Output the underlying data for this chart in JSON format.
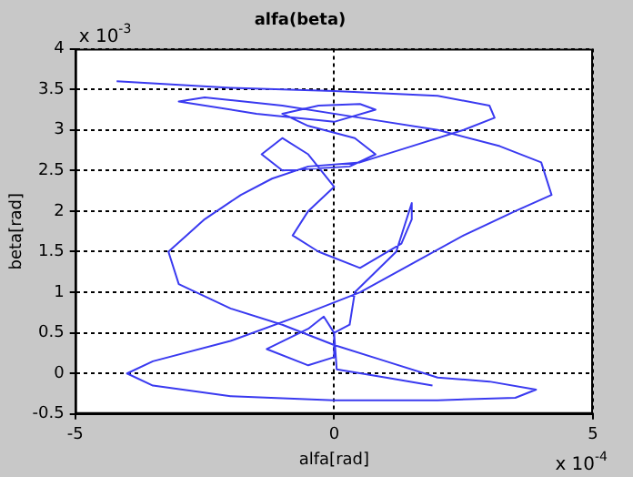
{
  "chart_data": {
    "type": "line",
    "title": "alfa(beta)",
    "xlabel": "alfa[rad]",
    "ylabel": "beta[rad]",
    "annotations": [
      "x 10$^{-3}$",
      "x 10$^{-4}$"
    ],
    "xlim": [
      -5,
      5
    ],
    "xticks": [
      -5,
      0,
      5
    ],
    "ylim": [
      -0.5,
      4
    ],
    "yticks": [
      -0.5,
      0,
      0.5,
      1,
      1.5,
      2,
      2.5,
      3,
      3.5,
      4
    ],
    "grid": true,
    "legend": false,
    "marker": "none",
    "line_style": "solid",
    "series": [
      {
        "color": "#3a3af0",
        "x": [
          -4.2,
          -2,
          0,
          2,
          3,
          3.1,
          2.5,
          1.5,
          0.5,
          -0.5,
          -1.2,
          -1.8,
          -2.5,
          -3.2,
          -3,
          -2,
          -1,
          0,
          1,
          2,
          3,
          3.9,
          3.5,
          2,
          0,
          -2,
          -3.5,
          -4,
          -3.5,
          -2,
          -0.5,
          0.5,
          1.5,
          2.5,
          3.5,
          4.2,
          4,
          3.2,
          2,
          0.5,
          -1,
          -2.5,
          -3,
          -1.5,
          0,
          0.8,
          0.5,
          -0.3,
          -1,
          -0.5,
          0.4,
          0.8,
          0.3,
          -1,
          -1.4,
          -1,
          -0.5,
          0,
          -0.5,
          -0.8,
          -0.3,
          0.5,
          1.3,
          1.5,
          1.5,
          1.2,
          0.4,
          0.3,
          0,
          -0.2,
          -0.5,
          -1.3,
          -0.5,
          0,
          0,
          0.05,
          1,
          1.9
        ],
        "values": [
          3.6,
          3.52,
          3.48,
          3.42,
          3.3,
          3.15,
          3,
          2.8,
          2.6,
          2.55,
          2.4,
          2.2,
          1.9,
          1.5,
          1.1,
          0.8,
          0.6,
          0.35,
          0.15,
          -0.05,
          -0.1,
          -0.2,
          -0.3,
          -0.33,
          -0.33,
          -0.28,
          -0.15,
          0,
          0.15,
          0.4,
          0.75,
          1,
          1.35,
          1.7,
          2,
          2.2,
          2.6,
          2.8,
          3,
          3.15,
          3.3,
          3.4,
          3.35,
          3.2,
          3.1,
          3.25,
          3.32,
          3.3,
          3.2,
          3.05,
          2.9,
          2.7,
          2.55,
          2.5,
          2.7,
          2.9,
          2.7,
          2.3,
          2,
          1.7,
          1.5,
          1.3,
          1.6,
          1.9,
          2.1,
          1.5,
          1,
          0.6,
          0.5,
          0.7,
          0.55,
          0.3,
          0.1,
          0.2,
          0.5,
          0.05,
          -0.05,
          -0.15
        ]
      }
    ]
  }
}
